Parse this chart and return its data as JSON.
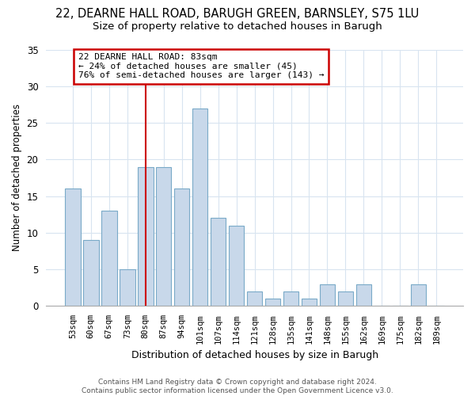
{
  "title": "22, DEARNE HALL ROAD, BARUGH GREEN, BARNSLEY, S75 1LU",
  "subtitle": "Size of property relative to detached houses in Barugh",
  "xlabel": "Distribution of detached houses by size in Barugh",
  "ylabel": "Number of detached properties",
  "bar_labels": [
    "53sqm",
    "60sqm",
    "67sqm",
    "73sqm",
    "80sqm",
    "87sqm",
    "94sqm",
    "101sqm",
    "107sqm",
    "114sqm",
    "121sqm",
    "128sqm",
    "135sqm",
    "141sqm",
    "148sqm",
    "155sqm",
    "162sqm",
    "169sqm",
    "175sqm",
    "182sqm",
    "189sqm"
  ],
  "bar_values": [
    16,
    9,
    13,
    5,
    19,
    19,
    16,
    27,
    12,
    11,
    2,
    1,
    2,
    1,
    3,
    2,
    3,
    0,
    0,
    3,
    0
  ],
  "bar_color": "#c8d8ea",
  "bar_edge_color": "#7aaac8",
  "annotation_box_text": "22 DEARNE HALL ROAD: 83sqm\n← 24% of detached houses are smaller (45)\n76% of semi-detached houses are larger (143) →",
  "annotation_box_color": "white",
  "annotation_box_edge_color": "#cc0000",
  "vline_color": "#cc0000",
  "ylim": [
    0,
    35
  ],
  "yticks": [
    0,
    5,
    10,
    15,
    20,
    25,
    30,
    35
  ],
  "footer": "Contains HM Land Registry data © Crown copyright and database right 2024.\nContains public sector information licensed under the Open Government Licence v3.0.",
  "bg_color": "white",
  "title_fontsize": 10.5,
  "subtitle_fontsize": 9.5,
  "grid_color": "#d8e4f0"
}
